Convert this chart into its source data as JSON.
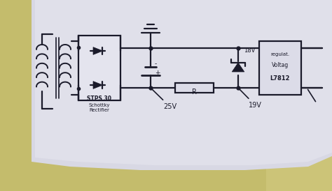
{
  "bg_color_top": "#c8c070",
  "bg_color_mid": "#b8b870",
  "bg_color_right": "#d4c880",
  "paper_color": "#dcdce8",
  "paper_shadow": "#c8c8d4",
  "line_color": "#1a1a2a",
  "lw": 1.6,
  "lw_thin": 1.0,
  "title_line1": "STPS 30",
  "title_line2": "Schottky",
  "title_line3": "Rectifier",
  "label_25v": "25V",
  "label_R": "R",
  "label_18v_zener": "18V",
  "label_19v": "19V",
  "label_regulator_line1": "L7812",
  "label_regulator_line2": "Voltag",
  "label_regulator_line3": "regulat.",
  "label_plus": "+",
  "label_minus": "-"
}
